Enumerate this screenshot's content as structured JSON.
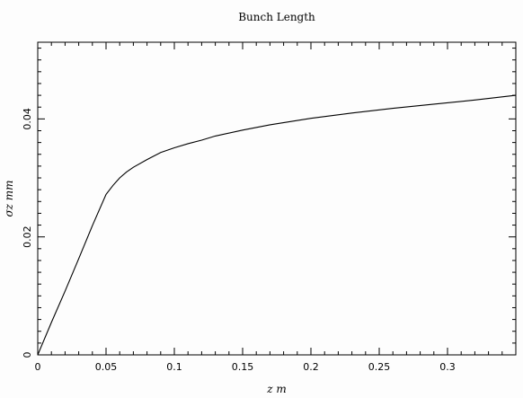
{
  "chart_data": {
    "type": "line",
    "title": "Bunch Length",
    "xlabel": "z m",
    "ylabel": "σz mm",
    "xlim": [
      0,
      0.35
    ],
    "ylim": [
      0,
      0.053
    ],
    "x_ticks": [
      0,
      0.05,
      0.1,
      0.15,
      0.2,
      0.25,
      0.3
    ],
    "x_tick_labels": [
      "0",
      "0.05",
      "0.1",
      "0.15",
      "0.2",
      "0.25",
      "0.3"
    ],
    "y_ticks": [
      0,
      0.02,
      0.04
    ],
    "y_tick_labels": [
      "0",
      "0.02",
      "0.04"
    ],
    "grid": false,
    "series": [
      {
        "x": [
          0,
          0.01,
          0.02,
          0.03,
          0.04,
          0.05,
          0.055,
          0.06,
          0.065,
          0.07,
          0.08,
          0.09,
          0.1,
          0.11,
          0.12,
          0.13,
          0.15,
          0.17,
          0.2,
          0.23,
          0.26,
          0.29,
          0.32,
          0.35
        ],
        "y": [
          0,
          0.0055,
          0.0108,
          0.0163,
          0.0219,
          0.0272,
          0.0287,
          0.03,
          0.031,
          0.0318,
          0.0331,
          0.0343,
          0.0351,
          0.0358,
          0.0364,
          0.0371,
          0.0381,
          0.039,
          0.0401,
          0.041,
          0.0418,
          0.0425,
          0.0432,
          0.044
        ]
      }
    ]
  }
}
